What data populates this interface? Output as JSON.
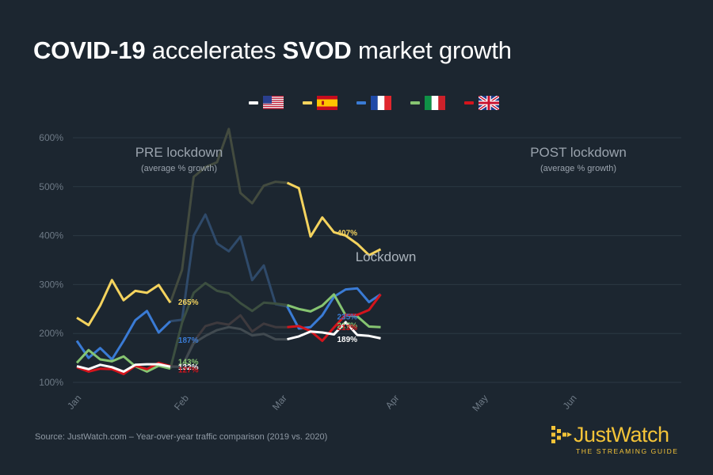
{
  "header": {
    "title_parts": [
      {
        "text": "COVID-19",
        "bold": true
      },
      {
        "text": " accelerates ",
        "bold": false
      },
      {
        "text": "SVOD",
        "bold": true
      },
      {
        "text": " market growth",
        "bold": false
      }
    ]
  },
  "legend": [
    {
      "country": "US",
      "flag": "us-flag-icon",
      "color": "#ffffff"
    },
    {
      "country": "ES",
      "flag": "spain-flag-icon",
      "color": "#f4d35e"
    },
    {
      "country": "FR",
      "flag": "france-flag-icon",
      "color": "#3a7bd5"
    },
    {
      "country": "IT",
      "flag": "italy-flag-icon",
      "color": "#86c471"
    },
    {
      "country": "UK",
      "flag": "uk-flag-icon",
      "color": "#d4141c"
    }
  ],
  "chart_data": {
    "type": "line",
    "x_ticks": [
      "Jan",
      "Feb",
      "Mar",
      "Apr",
      "May",
      "Jun"
    ],
    "y_ticks": [
      100,
      200,
      300,
      400,
      500,
      600
    ],
    "y_tick_suffix": "%",
    "ylim": [
      100,
      620
    ],
    "grid": true,
    "phases": [
      {
        "name": "PRE lockdown",
        "sub": "(average % growth)",
        "x_range": [
          0,
          4.6
        ]
      },
      {
        "name": "Lockdown",
        "sub": "",
        "x_range": [
          4.6,
          10.2
        ]
      },
      {
        "name": "POST lockdown",
        "sub": "(average % growth)",
        "x_range": [
          10.2,
          13.5
        ]
      }
    ],
    "series": [
      {
        "id": "ES",
        "color": "#f4d35e",
        "x": [
          0,
          0.5,
          1,
          1.5,
          2,
          2.5,
          3,
          3.5,
          4,
          4.5,
          5,
          5.5,
          6,
          6.5,
          7,
          7.5,
          8,
          8.5,
          9,
          9.5,
          10,
          10.5,
          11,
          11.5,
          12,
          12.5,
          13
        ],
        "y": [
          232,
          217,
          257,
          309,
          268,
          287,
          283,
          299,
          263,
          330,
          520,
          540,
          550,
          618,
          487,
          466,
          502,
          510,
          508,
          497,
          398,
          437,
          407,
          400,
          383,
          360,
          372
        ]
      },
      {
        "id": "FR",
        "color": "#3a7bd5",
        "x": [
          0,
          0.5,
          1,
          1.5,
          2,
          2.5,
          3,
          3.5,
          4,
          4.5,
          5,
          5.5,
          6,
          6.5,
          7,
          7.5,
          8,
          8.5,
          9,
          9.5,
          10,
          10.5,
          11,
          11.5,
          12,
          12.5,
          13
        ],
        "y": [
          185,
          150,
          170,
          147,
          185,
          227,
          246,
          202,
          225,
          228,
          400,
          443,
          384,
          368,
          398,
          309,
          339,
          260,
          255,
          210,
          213,
          237,
          275,
          290,
          292,
          264,
          280
        ]
      },
      {
        "id": "IT",
        "color": "#86c471",
        "x": [
          0,
          0.5,
          1,
          1.5,
          2,
          2.5,
          3,
          3.5,
          4,
          4.5,
          5,
          5.5,
          6,
          6.5,
          7,
          7.5,
          8,
          8.5,
          9,
          9.5,
          10,
          10.5,
          11,
          11.5,
          12,
          12.5,
          13
        ],
        "y": [
          140,
          166,
          147,
          143,
          153,
          133,
          122,
          134,
          128,
          222,
          283,
          303,
          287,
          282,
          262,
          246,
          263,
          261,
          258,
          250,
          245,
          257,
          280,
          237,
          235,
          214,
          213
        ]
      },
      {
        "id": "UK",
        "color": "#d4141c",
        "x": [
          0,
          0.5,
          1,
          1.5,
          2,
          2.5,
          3,
          3.5,
          4,
          4.5,
          5,
          5.5,
          6,
          6.5,
          7,
          7.5,
          8,
          8.5,
          9,
          9.5,
          10,
          10.5,
          11,
          11.5,
          12,
          12.5,
          13
        ],
        "y": [
          131,
          122,
          128,
          127,
          117,
          134,
          127,
          140,
          133,
          132,
          183,
          215,
          222,
          218,
          237,
          204,
          220,
          213,
          213,
          215,
          205,
          185,
          212,
          238,
          238,
          248,
          280
        ]
      },
      {
        "id": "US",
        "color": "#ffffff",
        "x": [
          0,
          0.5,
          1,
          1.5,
          2,
          2.5,
          3,
          3.5,
          4,
          4.5,
          5,
          5.5,
          6,
          6.5,
          7,
          7.5,
          8,
          8.5,
          9,
          9.5,
          10,
          10.5,
          11,
          11.5,
          12,
          12.5,
          13
        ],
        "y": [
          133,
          127,
          136,
          131,
          122,
          136,
          137,
          137,
          132,
          132,
          180,
          195,
          207,
          213,
          209,
          196,
          199,
          188,
          188,
          194,
          204,
          202,
          198,
          223,
          197,
          195,
          190
        ]
      }
    ],
    "pre_labels": [
      {
        "series": "ES",
        "x": 4.2,
        "y": 265,
        "text": "265%"
      },
      {
        "series": "FR",
        "x": 4.2,
        "y": 187,
        "text": "187%"
      },
      {
        "series": "IT",
        "x": 4.2,
        "y": 143,
        "text": "143%"
      },
      {
        "series": "US",
        "x": 4.2,
        "y": 132,
        "text": "132%"
      },
      {
        "series": "UK",
        "x": 4.2,
        "y": 127,
        "text": "127%"
      }
    ],
    "post_labels": [
      {
        "series": "ES",
        "x": 11.0,
        "y": 407,
        "text": "407%"
      },
      {
        "series": "FR",
        "x": 11.0,
        "y": 235,
        "text": "235%"
      },
      {
        "series": "IT",
        "x": 11.0,
        "y": 217,
        "text": "217%"
      },
      {
        "series": "UK",
        "x": 11.0,
        "y": 213,
        "text": "213%"
      },
      {
        "series": "US",
        "x": 11.0,
        "y": 189,
        "text": "189%"
      }
    ]
  },
  "footer": {
    "source": "Source: JustWatch.com – Year-over-year traffic comparison (2019 vs. 2020)",
    "logo_word": "JustWatch",
    "logo_tagline": "THE STREAMING GUIDE"
  }
}
